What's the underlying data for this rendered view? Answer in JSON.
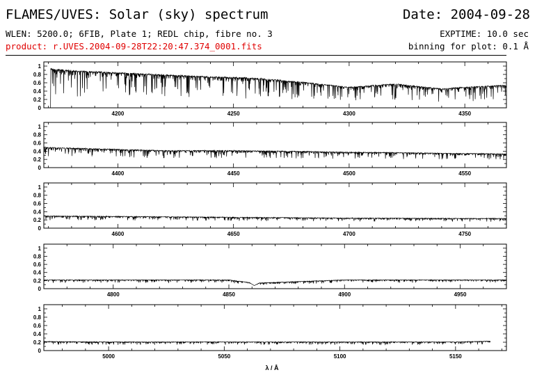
{
  "header": {
    "title": "FLAMES/UVES: Solar (sky) spectrum",
    "date": "Date: 2004-09-28",
    "setup": "WLEN: 5200.0; 6FIB, Plate 1; REDL chip, fibre no. 3",
    "product": "product: r.UVES.2004-09-28T22:20:47.374_0001.fits",
    "exptime": "EXPTIME: 10.0 sec",
    "binning": "binning for plot: 0.1 Å"
  },
  "colors": {
    "product": "#e00000",
    "line": "#000000"
  },
  "chart_data": [
    {
      "type": "line",
      "xlabel": "λ / Å",
      "xlim": [
        4168,
        4368
      ],
      "ylim": [
        0,
        1.1
      ],
      "xticks": [
        4200,
        4250,
        4300,
        4350
      ],
      "yticks": [
        0,
        0.2,
        0.4,
        0.6,
        0.8,
        1
      ],
      "series": [
        {
          "x": [
            4168,
            4170,
            4171,
            4180,
            4200,
            4220,
            4240,
            4260,
            4280,
            4300,
            4320,
            4340,
            4350,
            4368
          ],
          "y": [
            0.92,
            0.92,
            0.95,
            0.9,
            0.85,
            0.8,
            0.75,
            0.72,
            0.62,
            0.5,
            0.58,
            0.46,
            0.5,
            0.55
          ]
        }
      ]
    },
    {
      "type": "line",
      "xlim": [
        4368,
        4568
      ],
      "ylim": [
        0,
        1.1
      ],
      "xticks": [
        4400,
        4450,
        4500,
        4550
      ],
      "yticks": [
        0,
        0.2,
        0.4,
        0.6,
        0.8,
        1
      ],
      "series": [
        {
          "x": [
            4368,
            4380,
            4400,
            4420,
            4450,
            4480,
            4500,
            4520,
            4550,
            4568
          ],
          "y": [
            0.5,
            0.48,
            0.45,
            0.42,
            0.42,
            0.4,
            0.38,
            0.37,
            0.35,
            0.34
          ]
        }
      ]
    },
    {
      "type": "line",
      "xlim": [
        4568,
        4768
      ],
      "ylim": [
        0,
        1.1
      ],
      "xticks": [
        4600,
        4650,
        4700,
        4750
      ],
      "yticks": [
        0,
        0.2,
        0.4,
        0.6,
        0.8,
        1
      ],
      "series": [
        {
          "x": [
            4568,
            4600,
            4650,
            4700,
            4750,
            4768
          ],
          "y": [
            0.3,
            0.29,
            0.27,
            0.25,
            0.24,
            0.24
          ]
        }
      ]
    },
    {
      "type": "line",
      "xlim": [
        4770,
        4970
      ],
      "ylim": [
        0,
        1.1
      ],
      "xticks": [
        4800,
        4850,
        4900,
        4950
      ],
      "yticks": [
        0,
        0.2,
        0.4,
        0.6,
        0.8,
        1
      ],
      "series": [
        {
          "x": [
            4770,
            4800,
            4850,
            4861,
            4900,
            4950,
            4970
          ],
          "y": [
            0.22,
            0.22,
            0.22,
            0.14,
            0.22,
            0.22,
            0.22
          ]
        }
      ]
    },
    {
      "type": "line",
      "xlim": [
        4972,
        5172
      ],
      "ylim": [
        0,
        1.1
      ],
      "xticks": [
        5000,
        5050,
        5100,
        5150
      ],
      "yticks": [
        0,
        0.2,
        0.4,
        0.6,
        0.8,
        1
      ],
      "series": [
        {
          "x": [
            4972,
            5000,
            5050,
            5100,
            5150,
            5165
          ],
          "y": [
            0.22,
            0.21,
            0.21,
            0.21,
            0.21,
            0.23
          ]
        }
      ]
    }
  ]
}
